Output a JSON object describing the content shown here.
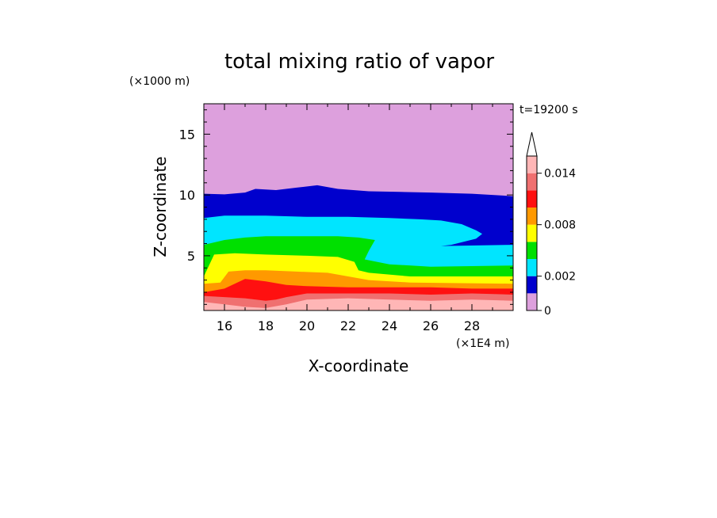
{
  "chart_data": {
    "type": "heatmap",
    "title": "total mixing ratio of vapor",
    "xlabel": "X-coordinate",
    "ylabel": "Z-coordinate",
    "x_unit": "(×1E4 m)",
    "y_unit": "(×1000 m)",
    "time_label": "t=19200 s",
    "xlim": [
      15,
      30
    ],
    "ylim": [
      0.5,
      17.5
    ],
    "x_ticks": [
      16,
      18,
      20,
      22,
      24,
      26,
      28
    ],
    "y_ticks": [
      5,
      10,
      15
    ],
    "colorbar": {
      "levels": [
        0,
        0.001,
        0.002,
        0.004,
        0.006,
        0.008,
        0.01,
        0.012,
        0.014,
        0.016
      ],
      "tick_labels": [
        "0",
        "0.002",
        "0.008",
        "0.014"
      ],
      "tick_values": [
        0,
        0.002,
        0.008,
        0.014
      ],
      "extend": "max",
      "colors": [
        "#dda0dd",
        "#0000cd",
        "#00e5ff",
        "#00e000",
        "#ffff00",
        "#ff9900",
        "#ff1010",
        "#f07070",
        "#ffb6b6"
      ]
    },
    "bands": [
      {
        "level_index": 0,
        "color": "#dda0dd",
        "top_profile": [
          [
            15,
            17.5
          ],
          [
            30,
            17.5
          ]
        ]
      },
      {
        "level_index": 1,
        "color": "#0000cd",
        "top_profile": [
          [
            15,
            10.1
          ],
          [
            16,
            10.05
          ],
          [
            17,
            10.2
          ],
          [
            17.5,
            10.5
          ],
          [
            18.5,
            10.4
          ],
          [
            19.5,
            10.6
          ],
          [
            20.5,
            10.8
          ],
          [
            21.5,
            10.5
          ],
          [
            23,
            10.3
          ],
          [
            24.5,
            10.25
          ],
          [
            26,
            10.2
          ],
          [
            28,
            10.1
          ],
          [
            30,
            9.9
          ]
        ]
      },
      {
        "level_index": 2,
        "color": "#00e5ff",
        "top_profile": [
          [
            15,
            8.1
          ],
          [
            16,
            8.3
          ],
          [
            18,
            8.3
          ],
          [
            20,
            8.2
          ],
          [
            22,
            8.2
          ],
          [
            24,
            8.1
          ],
          [
            25.5,
            8.0
          ],
          [
            26.5,
            7.9
          ],
          [
            27.5,
            7.6
          ],
          [
            28.2,
            7.1
          ],
          [
            28.5,
            6.8
          ],
          [
            28.2,
            6.4
          ],
          [
            27,
            5.9
          ],
          [
            26.5,
            5.8
          ],
          [
            30,
            5.9
          ]
        ]
      },
      {
        "level_index": 3,
        "color": "#00e000",
        "top_profile": [
          [
            15,
            5.9
          ],
          [
            16,
            6.3
          ],
          [
            17,
            6.5
          ],
          [
            18,
            6.6
          ],
          [
            20,
            6.6
          ],
          [
            21.5,
            6.6
          ],
          [
            22.5,
            6.5
          ],
          [
            23.3,
            6.3
          ],
          [
            23.0,
            5.4
          ],
          [
            22.8,
            4.7
          ],
          [
            24,
            4.3
          ],
          [
            26,
            4.1
          ],
          [
            30,
            4.2
          ]
        ]
      },
      {
        "level_index": 4,
        "color": "#ffff00",
        "top_profile": [
          [
            15,
            3.3
          ],
          [
            15.5,
            5.1
          ],
          [
            16.5,
            5.2
          ],
          [
            18,
            5.1
          ],
          [
            20,
            5.0
          ],
          [
            21.5,
            4.9
          ],
          [
            22.3,
            4.5
          ],
          [
            22.5,
            3.8
          ],
          [
            23,
            3.6
          ],
          [
            25,
            3.3
          ],
          [
            30,
            3.3
          ]
        ]
      },
      {
        "level_index": 5,
        "color": "#ff9900",
        "top_profile": [
          [
            15,
            2.7
          ],
          [
            15.8,
            2.8
          ],
          [
            16.2,
            3.7
          ],
          [
            17,
            3.8
          ],
          [
            18,
            3.8
          ],
          [
            19.5,
            3.7
          ],
          [
            21,
            3.6
          ],
          [
            22,
            3.3
          ],
          [
            23,
            3.0
          ],
          [
            25,
            2.8
          ],
          [
            30,
            2.7
          ]
        ]
      },
      {
        "level_index": 6,
        "color": "#ff1010",
        "top_profile": [
          [
            15,
            2.0
          ],
          [
            16,
            2.3
          ],
          [
            17,
            3.1
          ],
          [
            18,
            2.9
          ],
          [
            19,
            2.6
          ],
          [
            20,
            2.5
          ],
          [
            22,
            2.4
          ],
          [
            24,
            2.4
          ],
          [
            26,
            2.4
          ],
          [
            28,
            2.3
          ],
          [
            30,
            2.3
          ]
        ]
      },
      {
        "level_index": 7,
        "color": "#f07070",
        "top_profile": [
          [
            15,
            1.7
          ],
          [
            16,
            1.6
          ],
          [
            17,
            1.5
          ],
          [
            18,
            1.3
          ],
          [
            18.5,
            1.4
          ],
          [
            19,
            1.6
          ],
          [
            20,
            1.9
          ],
          [
            22,
            1.9
          ],
          [
            24,
            1.9
          ],
          [
            26,
            1.8
          ],
          [
            28,
            1.9
          ],
          [
            30,
            1.8
          ]
        ]
      },
      {
        "level_index": 8,
        "color": "#ffb6b6",
        "top_profile": [
          [
            15,
            1.2
          ],
          [
            16,
            1.0
          ],
          [
            17,
            0.8
          ],
          [
            18,
            0.7
          ],
          [
            19,
            1.0
          ],
          [
            20,
            1.4
          ],
          [
            22,
            1.5
          ],
          [
            24,
            1.4
          ],
          [
            26,
            1.3
          ],
          [
            28,
            1.4
          ],
          [
            30,
            1.3
          ]
        ]
      }
    ]
  }
}
